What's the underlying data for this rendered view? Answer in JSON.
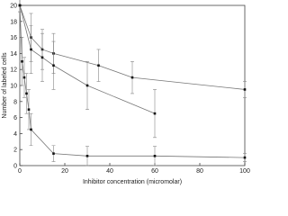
{
  "chart_data": {
    "type": "line",
    "xlabel": "Inhibitor concentration (micromolar)",
    "ylabel": "Number of labeled cells",
    "xlim": [
      0,
      100
    ],
    "xticks": [
      0,
      20,
      40,
      60,
      80,
      100
    ],
    "ylim": [
      0,
      20
    ],
    "yticks": [
      0,
      2,
      4,
      6,
      8,
      10,
      12,
      14,
      16,
      18,
      20
    ],
    "series": [
      {
        "color": "#777777",
        "x": [
          0,
          5,
          10,
          15,
          35,
          50,
          100
        ],
        "values": [
          20,
          16,
          14.5,
          14,
          12.5,
          11,
          9.5
        ],
        "errors": [
          0.8,
          3,
          2.5,
          2.5,
          2,
          2,
          1
        ]
      },
      {
        "color": "#777777",
        "x": [
          0,
          5,
          10,
          15,
          30,
          60
        ],
        "values": [
          20,
          14.5,
          13.5,
          12.5,
          10,
          6.5
        ],
        "errors": [
          0.8,
          3,
          3,
          3,
          3,
          3
        ]
      },
      {
        "color": "#777777",
        "x": [
          0,
          1,
          2,
          3,
          4,
          5,
          15,
          30,
          60,
          100
        ],
        "values": [
          20,
          13,
          11,
          9,
          7,
          4.5,
          1.5,
          1.2,
          1.2,
          1
        ],
        "errors": [
          0.8,
          3,
          2.5,
          2.5,
          2.5,
          2,
          1,
          1.2,
          1.2,
          0.5
        ]
      }
    ]
  }
}
